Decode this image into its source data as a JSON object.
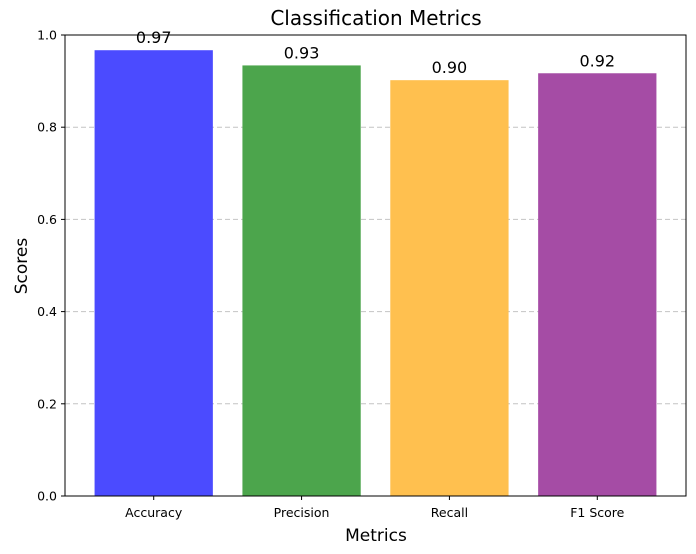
{
  "chart_data": {
    "type": "bar",
    "title": "Classification Metrics",
    "xlabel": "Metrics",
    "ylabel": "Scores",
    "categories": [
      "Accuracy",
      "Precision",
      "Recall",
      "F1 Score"
    ],
    "values": [
      0.967,
      0.934,
      0.902,
      0.917
    ],
    "data_labels": [
      "0.97",
      "0.93",
      "0.90",
      "0.92"
    ],
    "colors": [
      "#4b4bff",
      "#4ca54c",
      "#ffc04f",
      "#a54ca5"
    ],
    "ylim": [
      0,
      1.0
    ],
    "yticks": [
      0.0,
      0.2,
      0.4,
      0.6,
      0.8,
      1.0
    ],
    "ytick_labels": [
      "0.0",
      "0.2",
      "0.4",
      "0.6",
      "0.8",
      "1.0"
    ],
    "grid": "y-dashed"
  }
}
